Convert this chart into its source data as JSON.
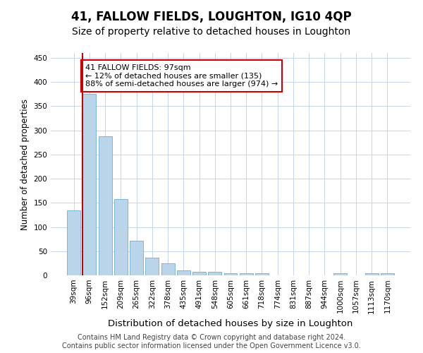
{
  "title": "41, FALLOW FIELDS, LOUGHTON, IG10 4QP",
  "subtitle": "Size of property relative to detached houses in Loughton",
  "xlabel": "Distribution of detached houses by size in Loughton",
  "ylabel": "Number of detached properties",
  "categories": [
    "39sqm",
    "96sqm",
    "152sqm",
    "209sqm",
    "265sqm",
    "322sqm",
    "378sqm",
    "435sqm",
    "491sqm",
    "548sqm",
    "605sqm",
    "661sqm",
    "718sqm",
    "774sqm",
    "831sqm",
    "887sqm",
    "944sqm",
    "1000sqm",
    "1057sqm",
    "1113sqm",
    "1170sqm"
  ],
  "values": [
    135,
    375,
    287,
    157,
    72,
    37,
    25,
    10,
    8,
    7,
    4,
    4,
    4,
    0,
    0,
    0,
    0,
    4,
    0,
    4,
    4
  ],
  "bar_color": "#bad4ea",
  "bar_edge_color": "#6baed6",
  "highlight_color": "#cc0000",
  "annotation_text": "41 FALLOW FIELDS: 97sqm\n← 12% of detached houses are smaller (135)\n88% of semi-detached houses are larger (974) →",
  "annotation_box_color": "#ffffff",
  "annotation_box_edge_color": "#cc0000",
  "ylim": [
    0,
    460
  ],
  "yticks": [
    0,
    50,
    100,
    150,
    200,
    250,
    300,
    350,
    400,
    450
  ],
  "footer_line1": "Contains HM Land Registry data © Crown copyright and database right 2024.",
  "footer_line2": "Contains public sector information licensed under the Open Government Licence v3.0.",
  "bg_color": "#ffffff",
  "grid_color": "#c8d4e8",
  "title_fontsize": 12,
  "subtitle_fontsize": 10,
  "xlabel_fontsize": 9.5,
  "ylabel_fontsize": 8.5,
  "tick_fontsize": 7.5,
  "annotation_fontsize": 8,
  "footer_fontsize": 7
}
